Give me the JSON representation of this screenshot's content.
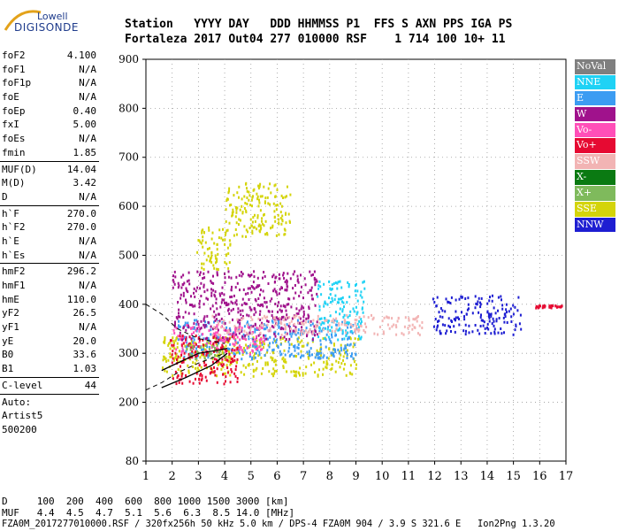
{
  "logo": {
    "brand_line1": "Lowell",
    "brand_line2": "DIGISONDE"
  },
  "header": {
    "labels": "Station   YYYY DAY   DDD HHMMSS P1  FFS S AXN PPS IGA PS",
    "values": "Fortaleza 2017 Out04 277 010000 RSF    1 714 100 10+ 11"
  },
  "params": {
    "group1": [
      {
        "label": "foF2",
        "value": "4.100"
      },
      {
        "label": "foF1",
        "value": "N/A"
      },
      {
        "label": "foF1p",
        "value": "N/A"
      },
      {
        "label": "foE",
        "value": "N/A"
      },
      {
        "label": "foEp",
        "value": "0.40"
      },
      {
        "label": "fxI",
        "value": "5.00"
      },
      {
        "label": "foEs",
        "value": "N/A"
      },
      {
        "label": "fmin",
        "value": "1.85"
      }
    ],
    "group2": [
      {
        "label": "MUF(D)",
        "value": "14.04"
      },
      {
        "label": "M(D)",
        "value": "3.42"
      },
      {
        "label": "D",
        "value": "N/A"
      }
    ],
    "group3": [
      {
        "label": "h`F",
        "value": "270.0"
      },
      {
        "label": "h`F2",
        "value": "270.0"
      },
      {
        "label": "h`E",
        "value": "N/A"
      },
      {
        "label": "h`Es",
        "value": "N/A"
      }
    ],
    "group4": [
      {
        "label": "hmF2",
        "value": "296.2"
      },
      {
        "label": "hmF1",
        "value": "N/A"
      },
      {
        "label": "hmE",
        "value": "110.0"
      },
      {
        "label": "yF2",
        "value": "26.5"
      },
      {
        "label": "yF1",
        "value": "N/A"
      },
      {
        "label": "yE",
        "value": "20.0"
      },
      {
        "label": "B0",
        "value": "33.6"
      },
      {
        "label": "B1",
        "value": "1.03"
      }
    ],
    "group5": [
      {
        "label": "C-level",
        "value": "44"
      }
    ],
    "auto": [
      "Auto:",
      "Artist5",
      "500200"
    ]
  },
  "footer": {
    "d_row": "D     100  200  400  600  800 1000 1500 3000 [km]",
    "muf_row": "MUF   4.4  4.5  4.7  5.1  5.6  6.3  8.5 14.0 [MHz]",
    "file_row": "FZA0M_2017277010000.RSF / 320fx256h 50 kHz 5.0 km / DPS-4 FZA0M 904 / 3.9 S 321.6 E   Ion2Png 1.3.20"
  },
  "legend": [
    {
      "label": "NoVal",
      "color": "#7f7f7f"
    },
    {
      "label": "NNE",
      "color": "#1fd2f5"
    },
    {
      "label": "E",
      "color": "#3c9cf2"
    },
    {
      "label": "W",
      "color": "#a0128c"
    },
    {
      "label": "Vo-",
      "color": "#ff4fb8"
    },
    {
      "label": "Vo+",
      "color": "#e60a32"
    },
    {
      "label": "SSW",
      "color": "#f2b4b4"
    },
    {
      "label": "X-",
      "color": "#0a7a12"
    },
    {
      "label": "X+",
      "color": "#7fba5c"
    },
    {
      "label": "SSE",
      "color": "#d4d40a"
    },
    {
      "label": "NNW",
      "color": "#1e1ed2"
    }
  ],
  "chart_data": {
    "type": "scatter",
    "title": "",
    "xlabel": "",
    "ylabel": "",
    "xlim": [
      1,
      17
    ],
    "ylim": [
      80,
      900
    ],
    "x_ticks": [
      1,
      2,
      3,
      4,
      5,
      6,
      7,
      8,
      9,
      10,
      11,
      12,
      13,
      14,
      15,
      16,
      17
    ],
    "y_ticks": [
      80,
      200,
      300,
      400,
      500,
      600,
      700,
      800,
      900
    ],
    "grid": "dotted",
    "legend_position": "right",
    "clusters": [
      {
        "direction": "SSE",
        "freq_range": [
          1.6,
          9.1
        ],
        "height_range": [
          255,
          335
        ]
      },
      {
        "direction": "SSE",
        "freq_range": [
          2.9,
          4.2
        ],
        "height_range": [
          470,
          560
        ]
      },
      {
        "direction": "SSE",
        "freq_range": [
          4.0,
          6.5
        ],
        "height_range": [
          540,
          650
        ]
      },
      {
        "direction": "E",
        "freq_range": [
          2.2,
          9.0
        ],
        "height_range": [
          290,
          370
        ]
      },
      {
        "direction": "NNE",
        "freq_range": [
          7.5,
          9.3
        ],
        "height_range": [
          330,
          450
        ]
      },
      {
        "direction": "W",
        "freq_range": [
          2.0,
          7.5
        ],
        "height_range": [
          330,
          470
        ]
      },
      {
        "direction": "Vo-",
        "freq_range": [
          2.0,
          5.5
        ],
        "height_range": [
          300,
          360
        ]
      },
      {
        "direction": "Vo+",
        "freq_range": [
          1.9,
          4.5
        ],
        "height_range": [
          240,
          340
        ]
      },
      {
        "direction": "SSW",
        "freq_range": [
          3.5,
          11.5
        ],
        "height_range": [
          340,
          380
        ]
      },
      {
        "direction": "X+",
        "freq_range": [
          2.5,
          4.0
        ],
        "height_range": [
          290,
          320
        ]
      },
      {
        "direction": "NNW",
        "freq_range": [
          11.9,
          13.3
        ],
        "height_range": [
          340,
          420
        ]
      },
      {
        "direction": "NNW",
        "freq_range": [
          13.4,
          15.3
        ],
        "height_range": [
          340,
          420
        ]
      },
      {
        "direction": "Vo+",
        "freq_range": [
          15.8,
          16.9
        ],
        "height_range": [
          395,
          400
        ]
      }
    ],
    "traces": [
      {
        "name": "virtual-height-trace",
        "points": [
          [
            1.6,
            230
          ],
          [
            2.5,
            250
          ],
          [
            3.5,
            275
          ],
          [
            4.1,
            300
          ]
        ]
      },
      {
        "name": "true-height-profile",
        "points": [
          [
            1.6,
            265
          ],
          [
            2.4,
            285
          ],
          [
            3.0,
            300
          ],
          [
            3.6,
            305
          ],
          [
            4.1,
            310
          ]
        ]
      },
      {
        "name": "dashed-upper",
        "points": [
          [
            1.0,
            400
          ],
          [
            1.6,
            380
          ],
          [
            2.2,
            350
          ],
          [
            3.0,
            330
          ],
          [
            4.0,
            320
          ]
        ]
      },
      {
        "name": "dashed-lower",
        "points": [
          [
            1.0,
            225
          ],
          [
            1.6,
            240
          ],
          [
            2.2,
            260
          ],
          [
            3.0,
            280
          ],
          [
            4.0,
            300
          ]
        ]
      }
    ]
  }
}
